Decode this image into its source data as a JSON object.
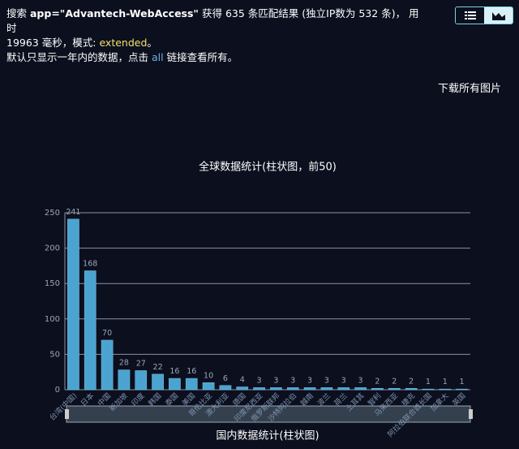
{
  "search": {
    "prefix": "搜索",
    "query": "app=\"Advantech-WebAccess\"",
    "found": "获得",
    "total": 635,
    "matched": "条匹配结果 (独立IP数为",
    "unique": 532,
    "took": "条)， 用时",
    "time": 19963,
    "ms": "毫秒，模式:",
    "mode": "extended",
    "end": "。"
  },
  "notice": {
    "before": "默认只显示一年内的数据，点击",
    "link": "all",
    "after": "链接查看所有。"
  },
  "download": "下载所有图片",
  "chart_data": {
    "type": "bar",
    "title": "全球数据统计(柱状图，前50)",
    "categories": [
      "台湾(中国)",
      "日本",
      "中国",
      "新加坡",
      "印度",
      "韩国",
      "泰国",
      "美国",
      "哥伦比亚",
      "澳大利亚",
      "德国",
      "印度尼西亚",
      "俄罗斯联邦",
      "沙特阿拉伯",
      "越南",
      "波兰",
      "荷兰",
      "土耳其",
      "智利",
      "马来西亚",
      "捷克",
      "阿拉伯联合酋长国",
      "加拿大",
      "英国"
    ],
    "values": [
      241,
      168,
      70,
      28,
      27,
      22,
      16,
      16,
      10,
      6,
      4,
      3,
      3,
      3,
      3,
      3,
      3,
      3,
      2,
      2,
      2,
      1,
      1,
      1
    ],
    "color": "#4ba3cf",
    "ylim": [
      0,
      250
    ],
    "yticks": [
      0,
      50,
      100,
      150,
      200,
      250
    ],
    "grid": true
  },
  "domestic_title": "国内数据统计(柱状图)"
}
